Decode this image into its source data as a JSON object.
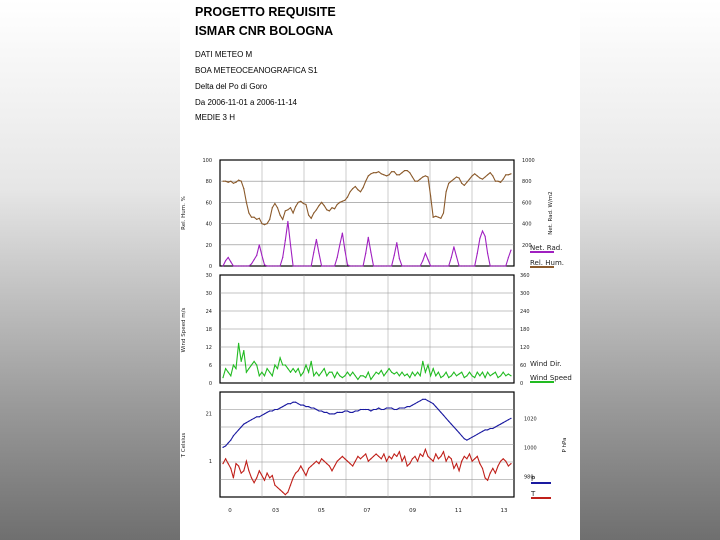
{
  "header": {
    "title1": "PROGETTO REQUISITE",
    "title2": "ISMAR CNR BOLOGNA",
    "line1": "DATI METEO  M",
    "line2": "BOA METEOCEANOGRAFICA S1",
    "line3": "Delta del Po di Goro",
    "line4": "Da 2006-11-01 a 2006-11-14",
    "line5": "MEDIE 3 H"
  },
  "colors": {
    "rel_hum": "#8b5a2b",
    "net_rad": "#a020c0",
    "wind_dir": "#ffffff",
    "wind_speed": "#22bb22",
    "pressure": "#1a1aa0",
    "temperature": "#c0201a"
  },
  "chart_data": [
    {
      "type": "line",
      "panel": "top",
      "ylabel_left": "Rel. Hum. %",
      "ylabel_right": "Net. Rad. W/m2",
      "ylim_left": [
        0,
        100
      ],
      "yticks_left": [
        "0",
        "20",
        "40",
        "60",
        "80",
        "100"
      ],
      "ylim_right": [
        0,
        1000
      ],
      "yticks_right": [
        "200",
        "400",
        "600",
        "800",
        "1000"
      ],
      "x_count": 112,
      "grid": true,
      "legend": [
        "Net. Rad.",
        "Rel. Hum."
      ],
      "series": [
        {
          "name": "Rel. Hum.",
          "axis": "left",
          "values": [
            80,
            80,
            79,
            80,
            78,
            79,
            81,
            80,
            73,
            60,
            50,
            46,
            46,
            44,
            45,
            40,
            39,
            40,
            44,
            55,
            59,
            55,
            48,
            44,
            52,
            53,
            55,
            50,
            56,
            60,
            61,
            59,
            58,
            48,
            45,
            50,
            53,
            57,
            60,
            57,
            53,
            52,
            55,
            54,
            58,
            60,
            61,
            62,
            65,
            70,
            73,
            75,
            72,
            70,
            74,
            80,
            85,
            87,
            88,
            88,
            89,
            87,
            86,
            85,
            86,
            89,
            89,
            86,
            86,
            88,
            90,
            90,
            88,
            84,
            80,
            80,
            82,
            84,
            85,
            84,
            66,
            46,
            47,
            46,
            45,
            50,
            70,
            78,
            80,
            82,
            84,
            83,
            78,
            76,
            79,
            82,
            85,
            87,
            85,
            83,
            82,
            84,
            86,
            88,
            85,
            80,
            80,
            79,
            82,
            86,
            86,
            87
          ]
        },
        {
          "name": "Net. Rad.",
          "axis": "right",
          "values": [
            0,
            50,
            80,
            40,
            0,
            0,
            0,
            0,
            0,
            0,
            0,
            20,
            60,
            100,
            200,
            100,
            10,
            0,
            0,
            0,
            0,
            0,
            0,
            80,
            240,
            420,
            200,
            0,
            0,
            0,
            0,
            0,
            0,
            0,
            0,
            130,
            250,
            120,
            0,
            0,
            0,
            0,
            0,
            0,
            80,
            200,
            310,
            150,
            10,
            0,
            0,
            0,
            0,
            0,
            0,
            120,
            270,
            130,
            0,
            0,
            0,
            0,
            0,
            0,
            0,
            0,
            100,
            220,
            70,
            0,
            0,
            0,
            0,
            0,
            0,
            0,
            0,
            50,
            120,
            60,
            0,
            0,
            0,
            0,
            0,
            0,
            0,
            0,
            80,
            180,
            90,
            0,
            0,
            0,
            0,
            0,
            0,
            0,
            120,
            260,
            330,
            280,
            120,
            0,
            0,
            0,
            0,
            0,
            0,
            0,
            80,
            150
          ]
        }
      ]
    },
    {
      "type": "line",
      "panel": "middle",
      "ylabel_left": "Wind Speed m/s",
      "ylim_left": [
        0,
        30
      ],
      "yticks_left": [
        "0",
        "6",
        "12",
        "18",
        "24",
        "30",
        "30"
      ],
      "ylim_right": [
        0,
        360
      ],
      "yticks_right": [
        "0",
        "60",
        "120",
        "180",
        "240",
        "300",
        "360"
      ],
      "x_count": 112,
      "grid": true,
      "legend": [
        "Wind Dir.",
        "Wind Speed"
      ],
      "series": [
        {
          "name": "Wind Speed",
          "axis": "left",
          "values": [
            1.5,
            4,
            3,
            2,
            5,
            4,
            11,
            6,
            9,
            3,
            4,
            5,
            6,
            5,
            2,
            3,
            2,
            4,
            3,
            2,
            5,
            4,
            7,
            5,
            5,
            4,
            3,
            4,
            3,
            4,
            2,
            3,
            5,
            3,
            6,
            2,
            3,
            2,
            3,
            4,
            2,
            3,
            3,
            1.5,
            3,
            2,
            1.5,
            2,
            3,
            2,
            3,
            2,
            1,
            2,
            2,
            1.5,
            3,
            1,
            2,
            3,
            2.5,
            3.5,
            2,
            3,
            4,
            3,
            2.5,
            3,
            2,
            3,
            2,
            2.5,
            1.5,
            3,
            2,
            3,
            2,
            6,
            3,
            5,
            2,
            4,
            2,
            3,
            1.5,
            2,
            3,
            1.5,
            2,
            3,
            2,
            2.5,
            3,
            1.5,
            2,
            3,
            2,
            1.5,
            3,
            2,
            3,
            1.5,
            3,
            2,
            2.5,
            3,
            1.5,
            2,
            3,
            2,
            2.5,
            2
          ]
        },
        {
          "name": "Wind Dir.",
          "axis": "right",
          "values": []
        }
      ]
    },
    {
      "type": "line",
      "panel": "bottom",
      "ylabel_left": "T Celsius",
      "ylabel_right": "P hPa",
      "yticks_left": [
        "21",
        "1"
      ],
      "yticks_right": [
        "1020",
        "1000",
        "980"
      ],
      "xtick_labels": [
        "0",
        "03",
        "05",
        "07",
        "09",
        "11",
        "13"
      ],
      "x_count": 112,
      "grid": true,
      "legend": [
        "P",
        "T"
      ],
      "series": [
        {
          "name": "P",
          "axis": "right",
          "values": [
            1000,
            1001,
            1003,
            1005,
            1008,
            1010,
            1012,
            1014,
            1016,
            1017,
            1018,
            1019,
            1020,
            1021,
            1021,
            1022,
            1023,
            1024,
            1025,
            1025,
            1026,
            1026,
            1027,
            1028,
            1029,
            1030,
            1030,
            1031,
            1031,
            1030,
            1029,
            1029,
            1028,
            1028,
            1027,
            1027,
            1026,
            1025,
            1025,
            1024,
            1024,
            1023,
            1023,
            1023,
            1024,
            1024,
            1024,
            1025,
            1025,
            1024,
            1024,
            1025,
            1025,
            1026,
            1026,
            1026,
            1026,
            1025,
            1026,
            1026,
            1027,
            1026,
            1026,
            1027,
            1027,
            1027,
            1026,
            1026,
            1027,
            1027,
            1027,
            1028,
            1028,
            1029,
            1030,
            1031,
            1032,
            1033,
            1033,
            1032,
            1031,
            1030,
            1028,
            1026,
            1024,
            1022,
            1020,
            1018,
            1016,
            1014,
            1012,
            1010,
            1008,
            1006,
            1005,
            1006,
            1007,
            1008,
            1009,
            1010,
            1011,
            1012,
            1012,
            1013,
            1013,
            1014,
            1015,
            1016,
            1017,
            1018,
            1019,
            1020
          ]
        },
        {
          "name": "T",
          "axis": "left",
          "values": [
            0,
            2,
            0,
            -2,
            -6,
            0,
            -1,
            -4,
            -3,
            1,
            -3,
            -6,
            -8,
            -6,
            -3,
            -5,
            -7,
            -4,
            -6,
            -5,
            -9,
            -10,
            -11,
            -12,
            -13,
            -12,
            -9,
            -6,
            -4,
            -3,
            -1,
            -3,
            -5,
            -2,
            -1,
            0,
            1,
            0,
            2,
            1,
            0,
            -1,
            -3,
            -1,
            1,
            2,
            3,
            2,
            1,
            0,
            -1,
            1,
            3,
            2,
            3,
            4,
            1,
            2,
            3,
            4,
            3,
            2,
            4,
            1,
            3,
            2,
            4,
            3,
            5,
            1,
            3,
            -1,
            0,
            2,
            3,
            1,
            4,
            3,
            6,
            3,
            2,
            1,
            4,
            2,
            3,
            5,
            1,
            3,
            2,
            -2,
            0,
            -3,
            1,
            3,
            2,
            4,
            1,
            2,
            3,
            0,
            -2,
            -6,
            -7,
            -4,
            -2,
            -4,
            -1,
            1,
            2,
            1,
            -1,
            0
          ]
        }
      ]
    }
  ]
}
